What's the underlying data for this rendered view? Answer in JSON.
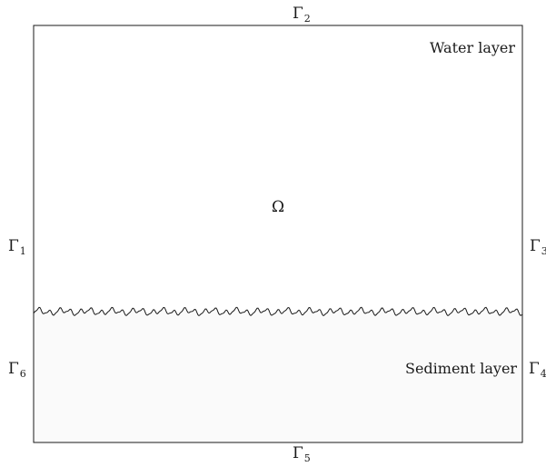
{
  "domain_labels": {
    "omega": "Ω"
  },
  "regions": {
    "water": "Water layer",
    "sediment": "Sediment layer"
  },
  "boundaries": {
    "g1": {
      "symbol": "Γ",
      "index": "1"
    },
    "g2": {
      "symbol": "Γ",
      "index": "2"
    },
    "g3": {
      "symbol": "Γ",
      "index": "3"
    },
    "g4": {
      "symbol": "Γ",
      "index": "4"
    },
    "g5": {
      "symbol": "Γ",
      "index": "5"
    },
    "g6": {
      "symbol": "Γ",
      "index": "6"
    }
  },
  "colors": {
    "stroke": "#1a1a1a",
    "sediment_fill": "#fafafa",
    "background": "#ffffff"
  }
}
